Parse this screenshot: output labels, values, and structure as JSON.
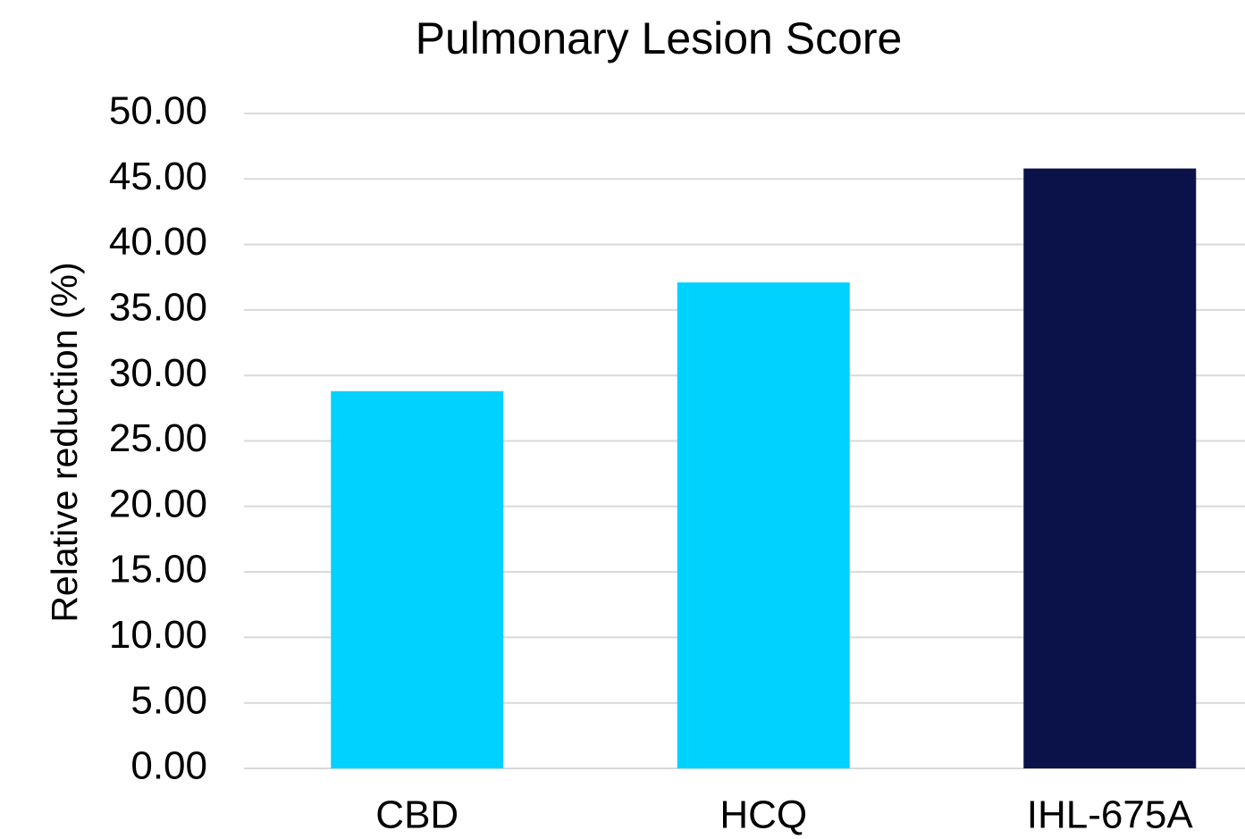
{
  "chart_data": {
    "type": "bar",
    "title": "Pulmonary Lesion Score",
    "y_label": "Relative reduction (%)",
    "categories": [
      "CBD",
      "HCQ",
      "IHL-675A"
    ],
    "values": [
      28.8,
      37.1,
      45.8
    ],
    "colors": [
      "#00d2ff",
      "#00d2ff",
      "#0b124a"
    ],
    "ylim": [
      0,
      50
    ],
    "yticks": [
      {
        "value": 0,
        "label": "0.00"
      },
      {
        "value": 5,
        "label": "5.00"
      },
      {
        "value": 10,
        "label": "10.00"
      },
      {
        "value": 15,
        "label": "15.00"
      },
      {
        "value": 20,
        "label": "20.00"
      },
      {
        "value": 25,
        "label": "25.00"
      },
      {
        "value": 30,
        "label": "30.00"
      },
      {
        "value": 35,
        "label": "35.00"
      },
      {
        "value": 40,
        "label": "40.00"
      },
      {
        "value": 45,
        "label": "45.00"
      },
      {
        "value": 50,
        "label": "50.00"
      }
    ],
    "grid": true
  }
}
